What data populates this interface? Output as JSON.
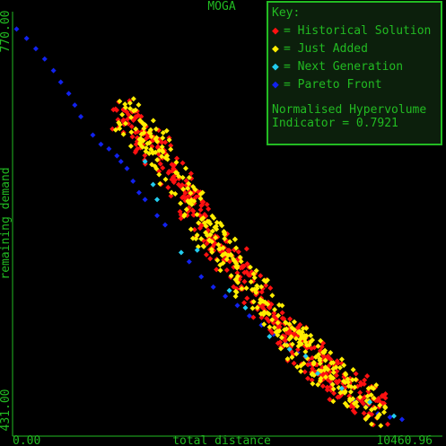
{
  "chart_data": {
    "type": "scatter",
    "title": "MOGA",
    "xlabel": "total distance",
    "ylabel": "remaining demand",
    "xlim": [
      0.0,
      10460.96
    ],
    "ylim": [
      431.0,
      770.0
    ],
    "x_tick_labels": [
      "0.00",
      "10460.96"
    ],
    "y_tick_labels": [
      "431.00",
      "770.00"
    ],
    "background": "#000000",
    "axis_color": "#22bb22",
    "legend": {
      "title": "Key:",
      "placement": "top-right",
      "entries": [
        {
          "label": "= Historical Solution",
          "color": "#ff1111",
          "marker": "diamond"
        },
        {
          "label": "= Just Added",
          "color": "#ffee00",
          "marker": "diamond"
        },
        {
          "label": "= Next Generation",
          "color": "#22ccee",
          "marker": "diamond"
        },
        {
          "label": "= Pareto Front",
          "color": "#1122ee",
          "marker": "diamond"
        }
      ],
      "hypervolume_line1": "Normalised Hypervolume",
      "hypervolume_line2": "Indicator = 0.7921"
    },
    "series": [
      {
        "name": "Pareto Front",
        "color": "#1122ee",
        "points": [
          [
            100,
            772
          ],
          [
            350,
            764
          ],
          [
            580,
            755
          ],
          [
            800,
            746
          ],
          [
            1020,
            736
          ],
          [
            1200,
            726
          ],
          [
            1400,
            716
          ],
          [
            1550,
            706
          ],
          [
            1700,
            696
          ],
          [
            2000,
            680
          ],
          [
            2200,
            672
          ],
          [
            2400,
            668
          ],
          [
            2600,
            662
          ],
          [
            2700,
            657
          ],
          [
            2850,
            651
          ],
          [
            3000,
            640
          ],
          [
            3150,
            630
          ],
          [
            3300,
            624
          ],
          [
            3600,
            610
          ],
          [
            3800,
            602
          ],
          [
            4400,
            570
          ],
          [
            4700,
            557
          ],
          [
            5000,
            548
          ],
          [
            5300,
            540
          ],
          [
            5600,
            532
          ],
          [
            5900,
            523
          ],
          [
            6200,
            515
          ],
          [
            6500,
            507
          ],
          [
            6800,
            499
          ],
          [
            7100,
            491
          ],
          [
            7400,
            481
          ],
          [
            7700,
            473
          ],
          [
            7950,
            464
          ],
          [
            8200,
            456
          ],
          [
            8500,
            449
          ],
          [
            8800,
            444
          ],
          [
            9100,
            438
          ],
          [
            9400,
            435
          ],
          [
            9700,
            433
          ]
        ]
      },
      {
        "name": "Historical Solution",
        "color": "#ff1111",
        "centerline": [
          [
            2700,
            702
          ],
          [
            3800,
            660
          ],
          [
            4800,
            600
          ],
          [
            5700,
            560
          ],
          [
            6800,
            508
          ],
          [
            8000,
            470
          ],
          [
            9200,
            440
          ]
        ],
        "count": 470,
        "spread": 34
      },
      {
        "name": "Just Added",
        "color": "#ffee00",
        "centerline": [
          [
            2700,
            702
          ],
          [
            3800,
            660
          ],
          [
            4800,
            600
          ],
          [
            5700,
            560
          ],
          [
            6800,
            508
          ],
          [
            8000,
            470
          ],
          [
            9200,
            440
          ]
        ],
        "count": 360,
        "spread": 34
      },
      {
        "name": "Next Generation",
        "color": "#22ccee",
        "points": [
          [
            3300,
            657
          ],
          [
            3500,
            637
          ],
          [
            3600,
            624
          ],
          [
            4200,
            578
          ],
          [
            4600,
            580
          ],
          [
            5400,
            545
          ],
          [
            5800,
            530
          ],
          [
            6400,
            505
          ],
          [
            6900,
            494
          ],
          [
            7300,
            488
          ],
          [
            7600,
            473
          ],
          [
            8200,
            460
          ],
          [
            8900,
            448
          ],
          [
            9500,
            436
          ]
        ]
      }
    ]
  }
}
